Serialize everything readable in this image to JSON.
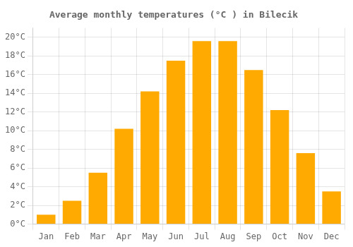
{
  "chart_data": {
    "type": "bar",
    "title": "Average monthly temperatures (°C ) in Bilecik",
    "categories": [
      "Jan",
      "Feb",
      "Mar",
      "Apr",
      "May",
      "Jun",
      "Jul",
      "Aug",
      "Sep",
      "Oct",
      "Nov",
      "Dec"
    ],
    "values": [
      1.0,
      2.5,
      5.5,
      10.2,
      14.2,
      17.5,
      19.6,
      19.6,
      16.5,
      12.2,
      7.6,
      3.5
    ],
    "color": "#FFAA00",
    "ylim": [
      0,
      21
    ],
    "yticks": [
      {
        "value": 0,
        "label": "0°C"
      },
      {
        "value": 2,
        "label": "2°C"
      },
      {
        "value": 4,
        "label": "4°C"
      },
      {
        "value": 6,
        "label": "6°C"
      },
      {
        "value": 8,
        "label": "8°C"
      },
      {
        "value": 10,
        "label": "10°C"
      },
      {
        "value": 12,
        "label": "12°C"
      },
      {
        "value": 14,
        "label": "14°C"
      },
      {
        "value": 16,
        "label": "16°C"
      },
      {
        "value": 18,
        "label": "18°C"
      },
      {
        "value": 20,
        "label": "20°C"
      }
    ],
    "grid": true
  }
}
